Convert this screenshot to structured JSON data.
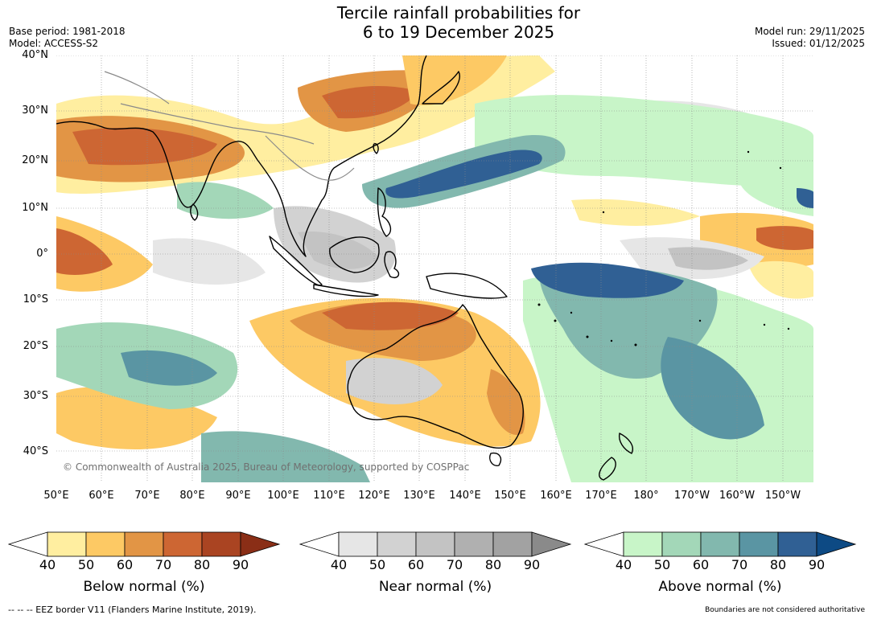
{
  "title": {
    "line1": "Tercile rainfall probabilities for",
    "line2": "6 to 19 December 2025"
  },
  "meta_left": {
    "base_period": "Base period: 1981-2018",
    "model": "Model: ACCESS-S2"
  },
  "meta_right": {
    "model_run": "Model run: 29/11/2025",
    "issued": "Issued: 01/12/2025"
  },
  "lat_labels": [
    "40°N",
    "30°N",
    "20°N",
    "10°N",
    "0°",
    "10°S",
    "20°S",
    "30°S",
    "40°S"
  ],
  "lon_labels": [
    "50°E",
    "60°E",
    "70°E",
    "80°E",
    "90°E",
    "100°E",
    "110°E",
    "120°E",
    "130°E",
    "140°E",
    "150°E",
    "160°E",
    "170°E",
    "180°",
    "170°W",
    "160°W",
    "150°W"
  ],
  "map": {
    "copyright": "© Commonwealth of Australia 2025, Bureau of Meteorology, supported by COSPPac",
    "colors": {
      "below": [
        "#ffeea0",
        "#fdc964",
        "#e29545",
        "#cd6633",
        "#aa4422",
        "#8a2e16"
      ],
      "near": [
        "#e6e6e6",
        "#d2d2d2",
        "#c3c3c3",
        "#b0b0b0",
        "#a2a2a2",
        "#8a8a8a"
      ],
      "above": [
        "#c8f5c8",
        "#a3d7b8",
        "#82b8ae",
        "#5a95a3",
        "#306094",
        "#0d4a84"
      ],
      "coast": "#000000",
      "borders": "#8a8a8a"
    }
  },
  "colorbars": [
    {
      "label": "Below normal (%)",
      "ticks": [
        "40",
        "50",
        "60",
        "70",
        "80",
        "90"
      ],
      "colors": [
        "#ffeea0",
        "#fdc964",
        "#e29545",
        "#cd6633",
        "#aa4422"
      ],
      "extend": "#8a2e16"
    },
    {
      "label": "Near normal (%)",
      "ticks": [
        "40",
        "50",
        "60",
        "70",
        "80",
        "90"
      ],
      "colors": [
        "#e6e6e6",
        "#d2d2d2",
        "#c3c3c3",
        "#b0b0b0",
        "#a2a2a2"
      ],
      "extend": "#8a8a8a"
    },
    {
      "label": "Above normal (%)",
      "ticks": [
        "40",
        "50",
        "60",
        "70",
        "80",
        "90"
      ],
      "colors": [
        "#c8f5c8",
        "#a3d7b8",
        "#82b8ae",
        "#5a95a3",
        "#306094"
      ],
      "extend": "#0d4a84"
    }
  ],
  "footer": {
    "left": "--  --  -- EEZ border V11 (Flanders Marine Institute, 2019).",
    "right": "Boundaries are not considered authoritative"
  }
}
